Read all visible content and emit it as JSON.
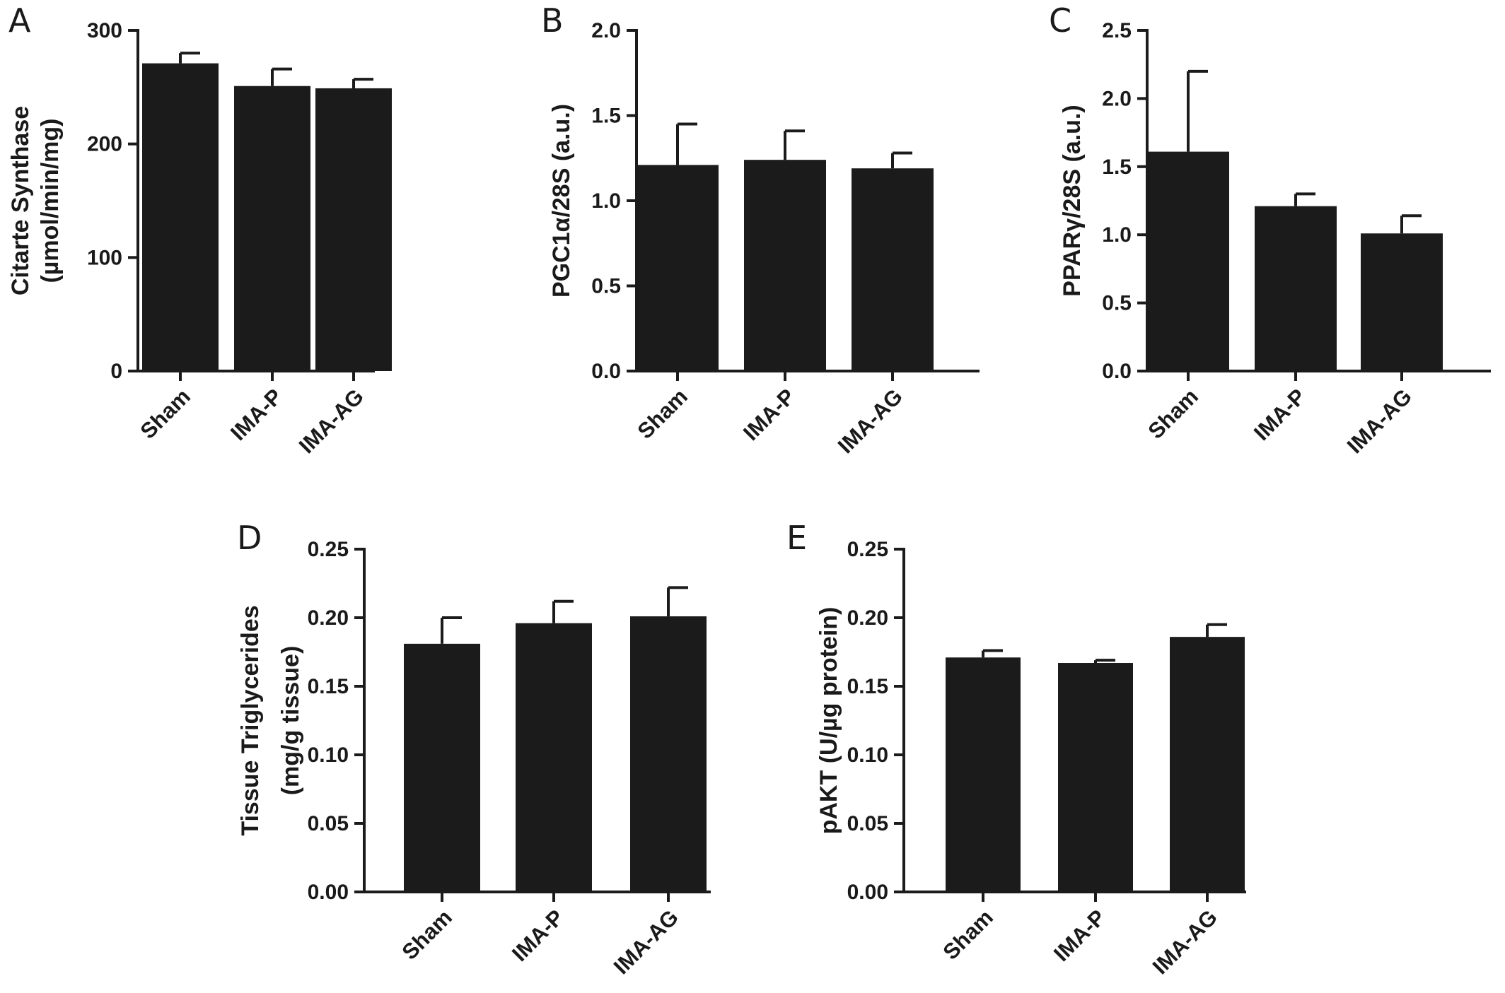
{
  "colors": {
    "bar": "#1b1b1b",
    "axis": "#1b1b1b",
    "text": "#1a1a1a",
    "background": "#ffffff"
  },
  "chart_data": [
    {
      "panel": "A",
      "type": "bar",
      "categories": [
        "Sham",
        "IMA-P",
        "IMA-AG"
      ],
      "values": [
        271,
        251,
        249
      ],
      "errors": [
        9,
        15,
        8
      ],
      "ylim": [
        0,
        300
      ],
      "yticks": [
        0,
        100,
        200,
        300
      ],
      "ytick_labels": [
        "0",
        "100",
        "200",
        "300"
      ],
      "ylabel": [
        "Citarte Synthase",
        "(µmol/min/mg)"
      ],
      "grid": false
    },
    {
      "panel": "B",
      "type": "bar",
      "categories": [
        "Sham",
        "IMA-P",
        "IMA-AG"
      ],
      "values": [
        1.21,
        1.24,
        1.19
      ],
      "errors": [
        0.24,
        0.17,
        0.09
      ],
      "ylim": [
        0,
        2.0
      ],
      "yticks": [
        0,
        0.5,
        1.0,
        1.5,
        2.0
      ],
      "ytick_labels": [
        "0.0",
        "0.5",
        "1.0",
        "1.5",
        "2.0"
      ],
      "ylabel": [
        "PGC1α/28S  (a.u.)"
      ],
      "grid": false
    },
    {
      "panel": "C",
      "type": "bar",
      "categories": [
        "Sham",
        "IMA-P",
        "IMA-AG"
      ],
      "values": [
        1.61,
        1.21,
        1.01
      ],
      "errors": [
        0.59,
        0.09,
        0.13
      ],
      "ylim": [
        0,
        2.5
      ],
      "yticks": [
        0,
        0.5,
        1.0,
        1.5,
        2.0,
        2.5
      ],
      "ytick_labels": [
        "0.0",
        "0.5",
        "1.0",
        "1.5",
        "2.0",
        "2.5"
      ],
      "ylabel": [
        "PPARγ/28S  (a.u.)"
      ],
      "grid": false
    },
    {
      "panel": "D",
      "type": "bar",
      "categories": [
        "Sham",
        "IMA-P",
        "IMA-AG"
      ],
      "values": [
        0.181,
        0.196,
        0.201
      ],
      "errors": [
        0.019,
        0.016,
        0.021
      ],
      "ylim": [
        0,
        0.25
      ],
      "yticks": [
        0,
        0.05,
        0.1,
        0.15,
        0.2,
        0.25
      ],
      "ytick_labels": [
        "0.00",
        "0.05",
        "0.10",
        "0.15",
        "0.20",
        "0.25"
      ],
      "ylabel": [
        "Tissue Triglycerides",
        "(mg/g tissue)"
      ],
      "grid": false
    },
    {
      "panel": "E",
      "type": "bar",
      "categories": [
        "Sham",
        "IMA-P",
        "IMA-AG"
      ],
      "values": [
        0.171,
        0.167,
        0.186
      ],
      "errors": [
        0.005,
        0.002,
        0.009
      ],
      "ylim": [
        0,
        0.25
      ],
      "yticks": [
        0,
        0.05,
        0.1,
        0.15,
        0.2,
        0.25
      ],
      "ytick_labels": [
        "0.00",
        "0.05",
        "0.10",
        "0.15",
        "0.20",
        "0.25"
      ],
      "ylabel": [
        "pAKT (U/µg protein)"
      ],
      "grid": false
    }
  ]
}
